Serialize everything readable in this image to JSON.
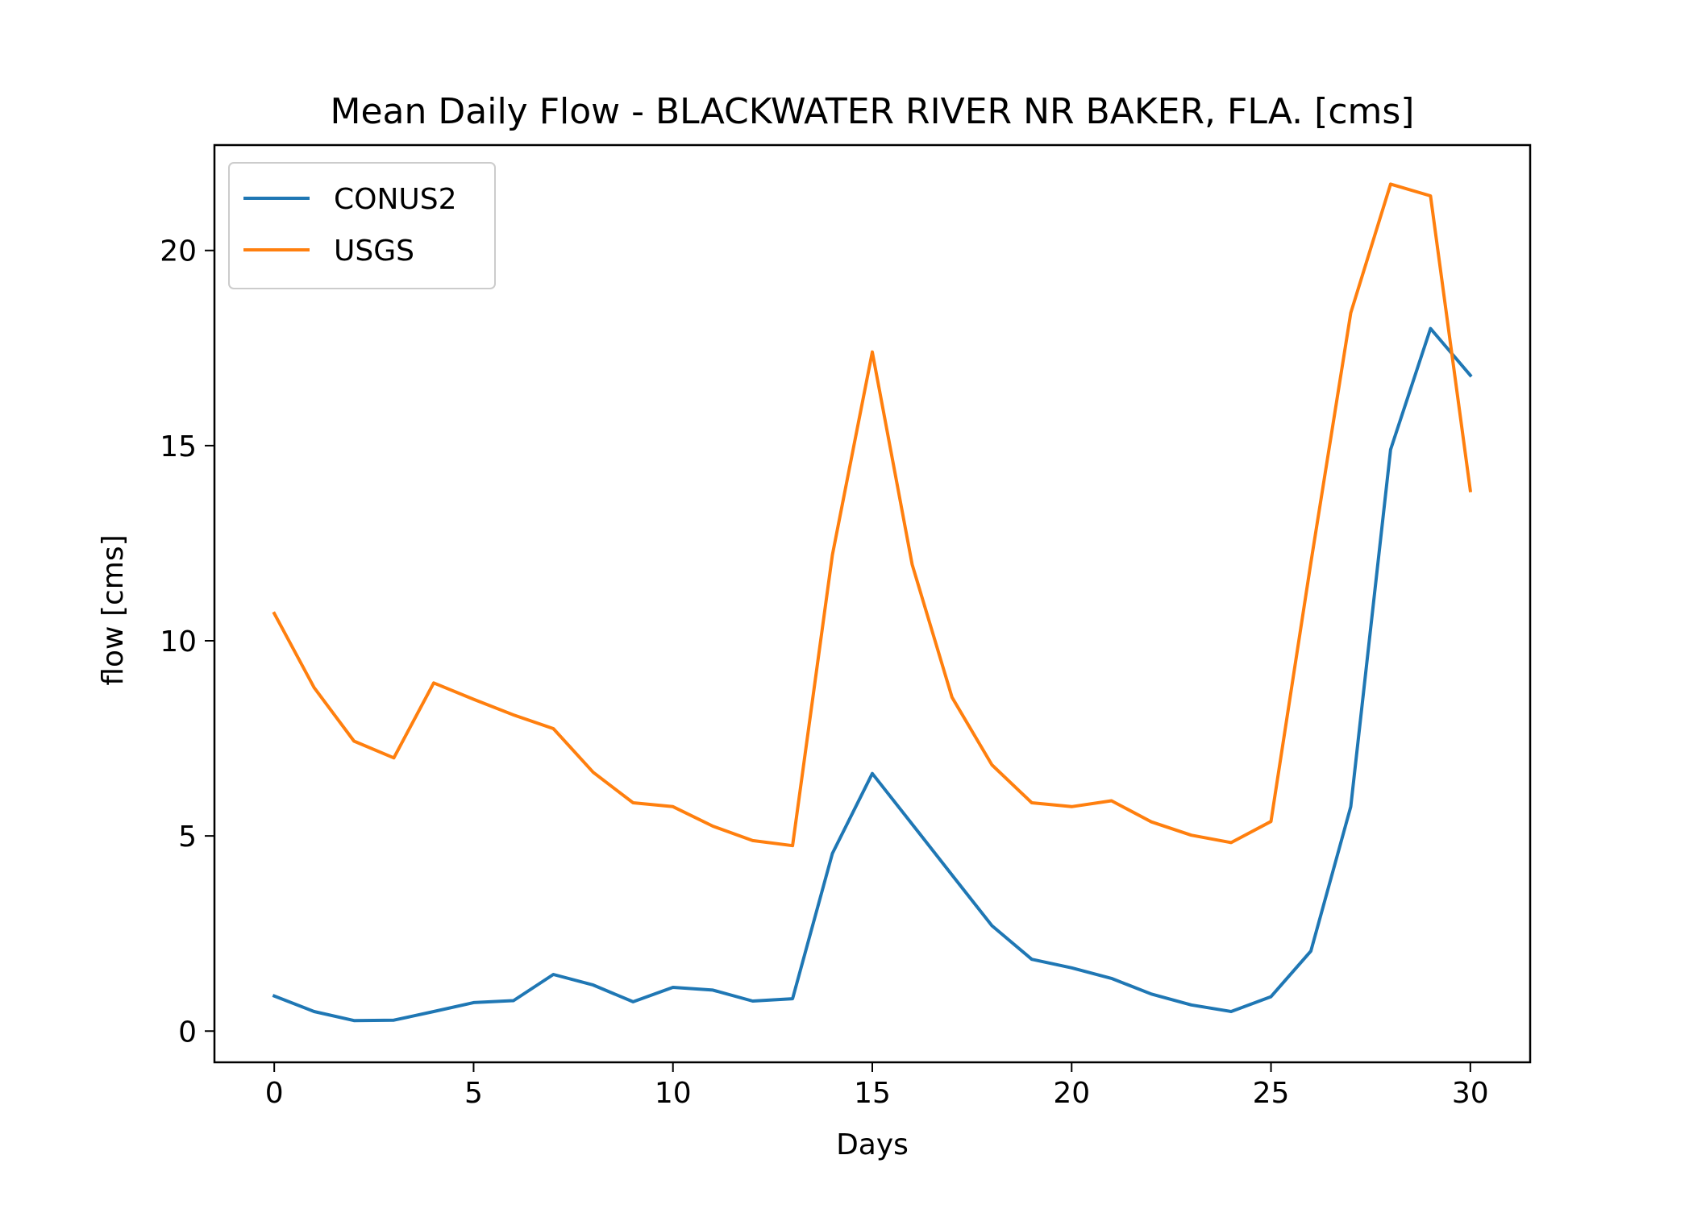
{
  "chart_data": {
    "type": "line",
    "title": "Mean Daily Flow - BLACKWATER RIVER NR BAKER, FLA. [cms]",
    "xlabel": "Days",
    "ylabel": "flow [cms]",
    "xlim": [
      -1.5,
      31.5
    ],
    "ylim": [
      -0.8,
      22.7
    ],
    "xticks": [
      0,
      5,
      10,
      15,
      20,
      25,
      30
    ],
    "yticks": [
      0,
      5,
      10,
      15,
      20
    ],
    "grid": false,
    "legend_position": "top-left",
    "x": [
      0,
      1,
      2,
      3,
      4,
      5,
      6,
      7,
      8,
      9,
      10,
      11,
      12,
      13,
      14,
      15,
      16,
      17,
      18,
      19,
      20,
      21,
      22,
      23,
      24,
      25,
      26,
      27,
      28,
      29,
      30
    ],
    "series": [
      {
        "name": "CONUS2",
        "color": "#1f77b4",
        "values": [
          0.9,
          0.5,
          0.27,
          0.28,
          0.5,
          0.73,
          0.78,
          1.45,
          1.18,
          0.75,
          1.12,
          1.05,
          0.77,
          0.83,
          4.55,
          6.6,
          5.3,
          4.0,
          2.7,
          1.84,
          1.62,
          1.35,
          0.95,
          0.67,
          0.5,
          0.88,
          2.05,
          5.75,
          14.9,
          18.0,
          16.8
        ]
      },
      {
        "name": "USGS",
        "color": "#ff7f0e",
        "values": [
          10.7,
          8.8,
          7.43,
          7.0,
          8.92,
          8.5,
          8.1,
          7.75,
          6.63,
          5.85,
          5.75,
          5.25,
          4.88,
          4.75,
          12.2,
          17.4,
          11.95,
          8.55,
          6.82,
          5.85,
          5.75,
          5.9,
          5.36,
          5.02,
          4.83,
          5.37,
          12.0,
          18.4,
          21.7,
          21.4,
          13.85
        ]
      }
    ]
  }
}
